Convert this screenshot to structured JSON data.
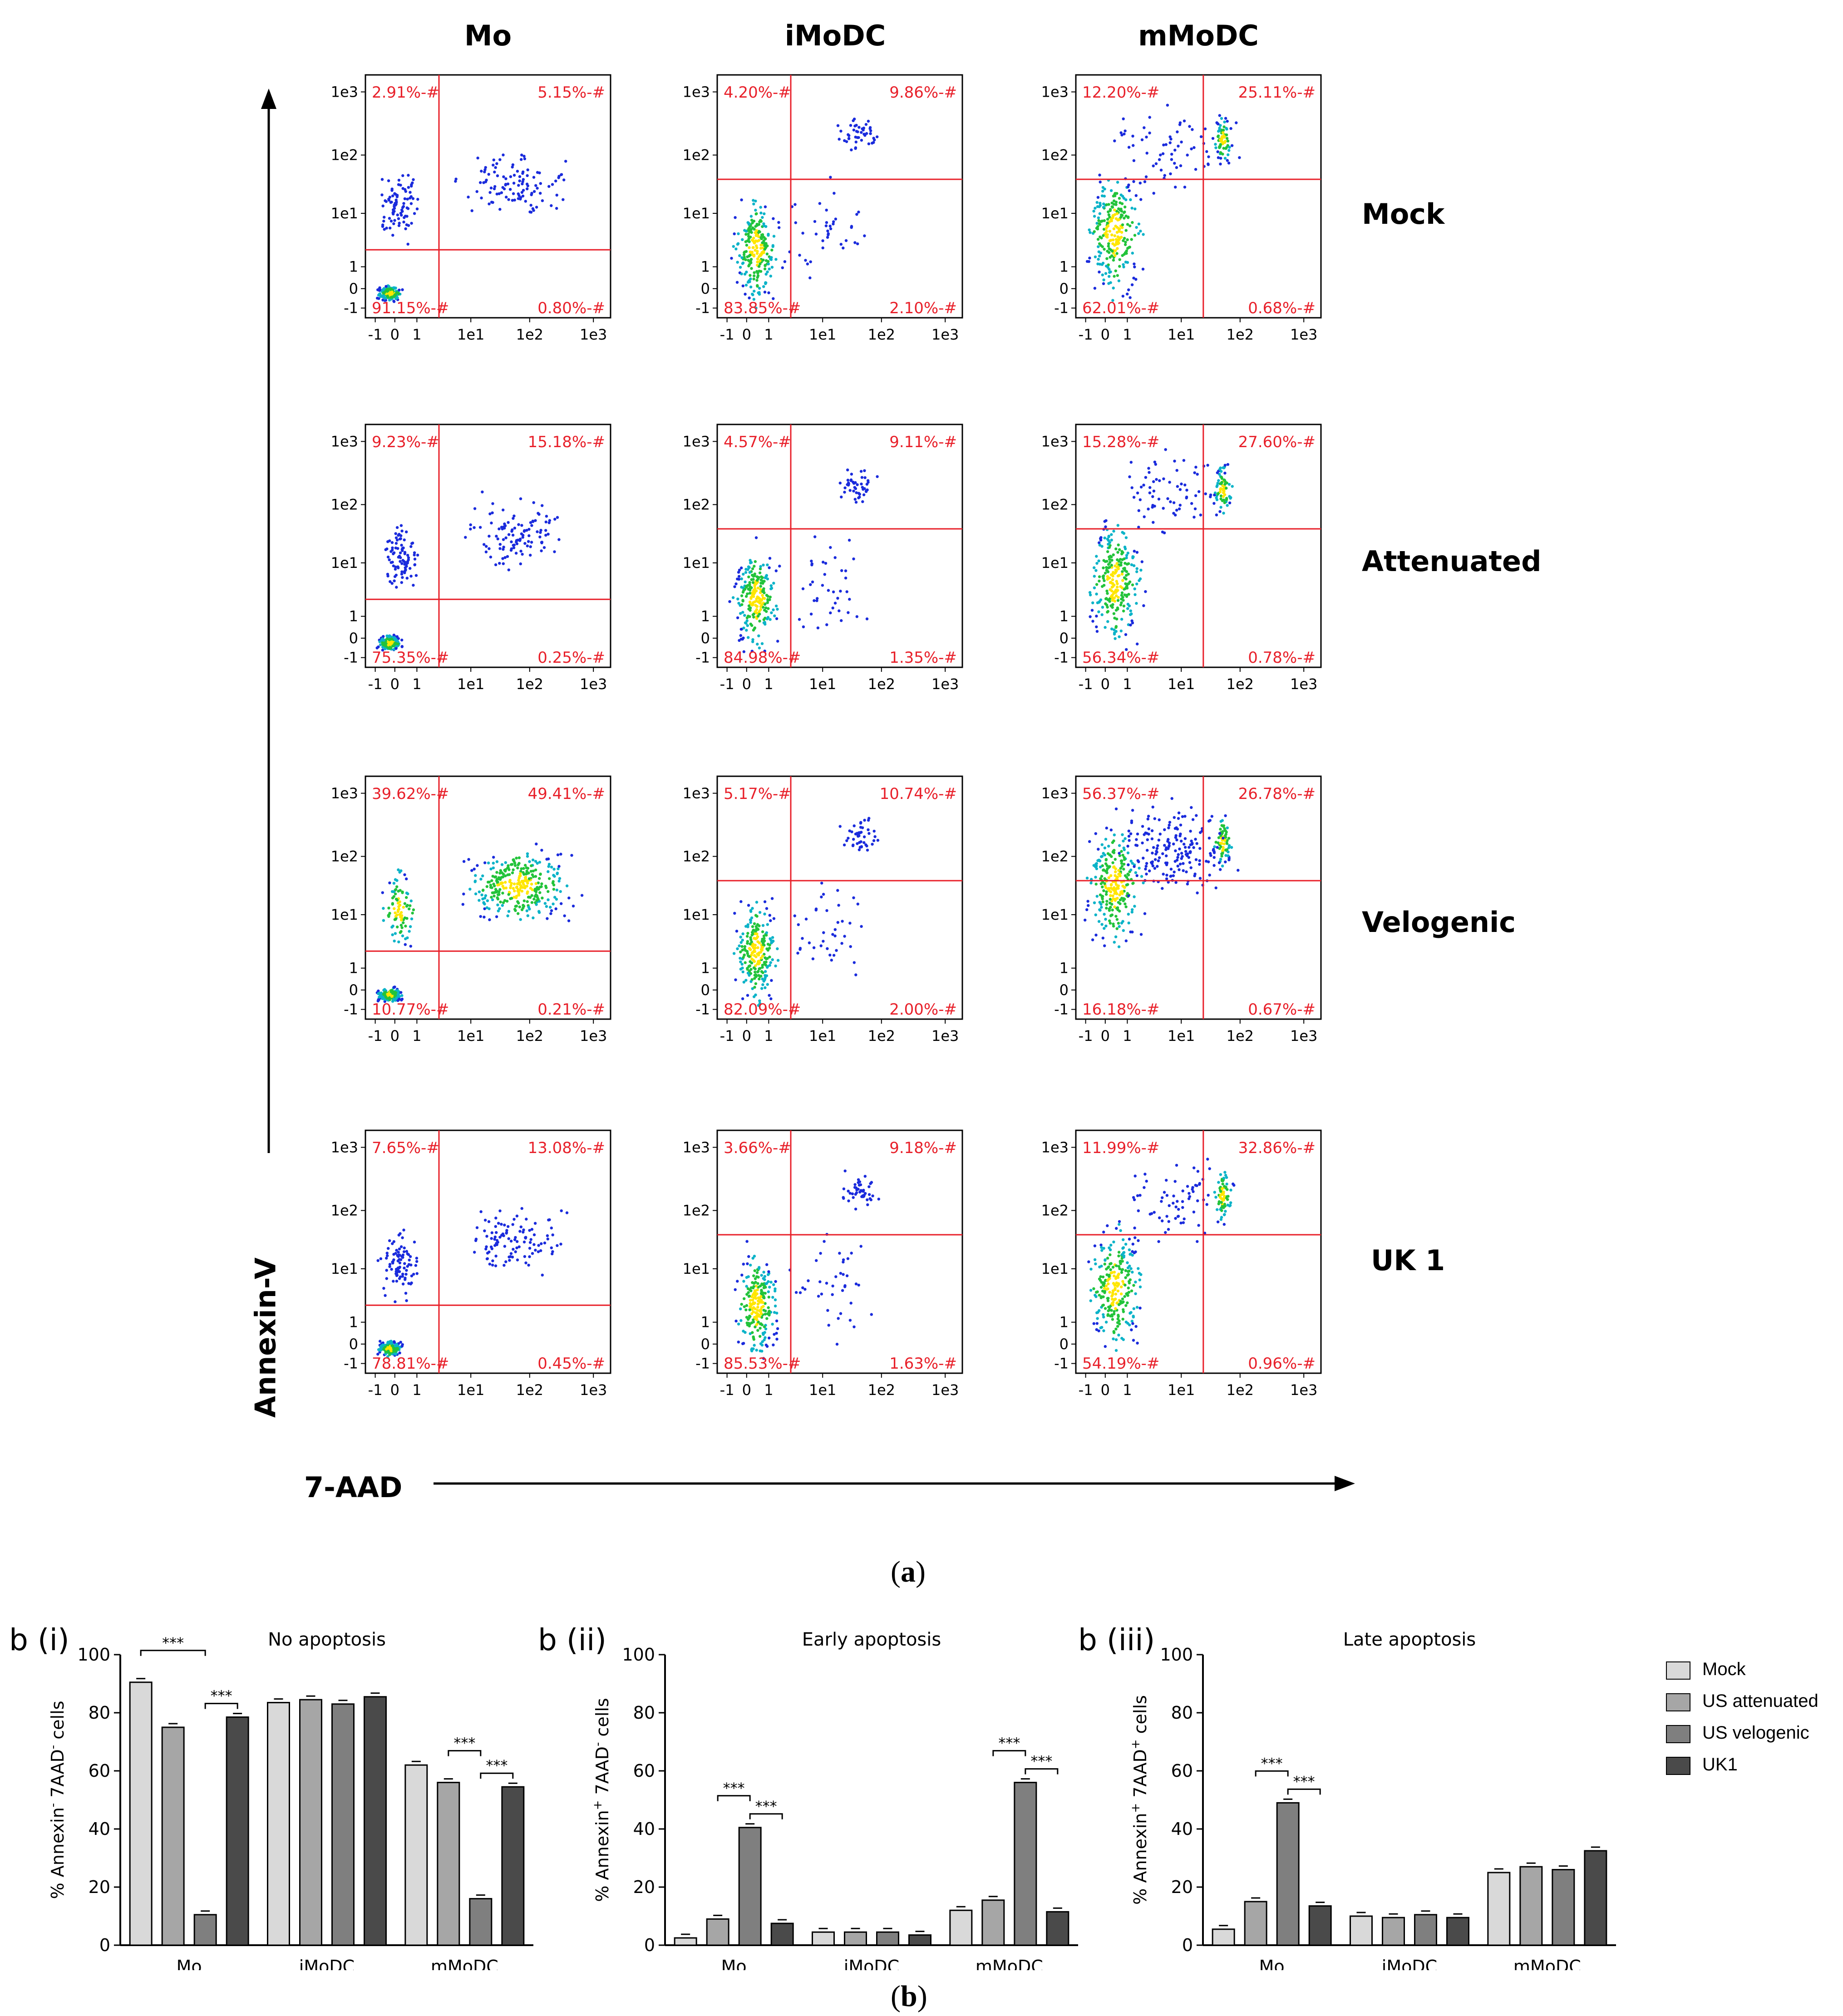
{
  "panel_a": {
    "caption_open": "(",
    "caption_letter": "a",
    "caption_close": ")",
    "column_headers": [
      "Mo",
      "iMoDC",
      "mMoDC"
    ],
    "row_labels": [
      "Mock",
      "Attenuated",
      "Velogenic",
      "UK 1"
    ],
    "y_axis_label": "Annexin-V",
    "x_axis_label": "7-AAD",
    "tick_labels": [
      "-1",
      "0",
      "1",
      "1e1",
      "1e2",
      "1e3"
    ],
    "quadrant_color": "#e8202a",
    "gates": [
      [
        {
          "ul": "2.91%-#",
          "ur": "5.15%-#",
          "ll": "91.15%-#",
          "lr": "0.80%-#"
        },
        {
          "ul": "4.20%-#",
          "ur": "9.86%-#",
          "ll": "83.85%-#",
          "lr": "2.10%-#"
        },
        {
          "ul": "12.20%-#",
          "ur": "25.11%-#",
          "ll": "62.01%-#",
          "lr": "0.68%-#"
        }
      ],
      [
        {
          "ul": "9.23%-#",
          "ur": "15.18%-#",
          "ll": "75.35%-#",
          "lr": "0.25%-#"
        },
        {
          "ul": "4.57%-#",
          "ur": "9.11%-#",
          "ll": "84.98%-#",
          "lr": "1.35%-#"
        },
        {
          "ul": "15.28%-#",
          "ur": "27.60%-#",
          "ll": "56.34%-#",
          "lr": "0.78%-#"
        }
      ],
      [
        {
          "ul": "39.62%-#",
          "ur": "49.41%-#",
          "ll": "10.77%-#",
          "lr": "0.21%-#"
        },
        {
          "ul": "5.17%-#",
          "ur": "10.74%-#",
          "ll": "82.09%-#",
          "lr": "2.00%-#"
        },
        {
          "ul": "56.37%-#",
          "ur": "26.78%-#",
          "ll": "16.18%-#",
          "lr": "0.67%-#"
        }
      ],
      [
        {
          "ul": "7.65%-#",
          "ur": "13.08%-#",
          "ll": "78.81%-#",
          "lr": "0.45%-#"
        },
        {
          "ul": "3.66%-#",
          "ur": "9.18%-#",
          "ll": "85.53%-#",
          "lr": "1.63%-#"
        },
        {
          "ul": "11.99%-#",
          "ur": "32.86%-#",
          "ll": "54.19%-#",
          "lr": "0.96%-#"
        }
      ]
    ]
  },
  "panel_b": {
    "caption_open": "(",
    "caption_letter": "b",
    "caption_close": ")",
    "legend": [
      {
        "name": "Mock",
        "color": "#d9d9d9"
      },
      {
        "name": "US attenuated",
        "color": "#a6a6a6"
      },
      {
        "name": "US velogenic",
        "color": "#7f7f7f"
      },
      {
        "name": "UK1",
        "color": "#4a4a4a"
      }
    ]
  },
  "chart_data": [
    {
      "type": "scatter",
      "description_note": "",
      "subplots": [
        {
          "row": "Mock",
          "column": "Mo",
          "quadrants_percent": {
            "upper_left": 2.91,
            "upper_right": 5.15,
            "lower_left": 91.15,
            "lower_right": 0.8
          }
        },
        {
          "row": "Mock",
          "column": "iMoDC",
          "quadrants_percent": {
            "upper_left": 4.2,
            "upper_right": 9.86,
            "lower_left": 83.85,
            "lower_right": 2.1
          }
        },
        {
          "row": "Mock",
          "column": "mMoDC",
          "quadrants_percent": {
            "upper_left": 12.2,
            "upper_right": 25.11,
            "lower_left": 62.01,
            "lower_right": 0.68
          }
        },
        {
          "row": "Attenuated",
          "column": "Mo",
          "quadrants_percent": {
            "upper_left": 9.23,
            "upper_right": 15.18,
            "lower_left": 75.35,
            "lower_right": 0.25
          }
        },
        {
          "row": "Attenuated",
          "column": "iMoDC",
          "quadrants_percent": {
            "upper_left": 4.57,
            "upper_right": 9.11,
            "lower_left": 84.98,
            "lower_right": 1.35
          }
        },
        {
          "row": "Attenuated",
          "column": "mMoDC",
          "quadrants_percent": {
            "upper_left": 15.28,
            "upper_right": 27.6,
            "lower_left": 56.34,
            "lower_right": 0.78
          }
        },
        {
          "row": "Velogenic",
          "column": "Mo",
          "quadrants_percent": {
            "upper_left": 39.62,
            "upper_right": 49.41,
            "lower_left": 10.77,
            "lower_right": 0.21
          }
        },
        {
          "row": "Velogenic",
          "column": "iMoDC",
          "quadrants_percent": {
            "upper_left": 5.17,
            "upper_right": 10.74,
            "lower_left": 82.09,
            "lower_right": 2.0
          }
        },
        {
          "row": "Velogenic",
          "column": "mMoDC",
          "quadrants_percent": {
            "upper_left": 56.37,
            "upper_right": 26.78,
            "lower_left": 16.18,
            "lower_right": 0.67
          }
        },
        {
          "row": "UK 1",
          "column": "Mo",
          "quadrants_percent": {
            "upper_left": 7.65,
            "upper_right": 13.08,
            "lower_left": 78.81,
            "lower_right": 0.45
          }
        },
        {
          "row": "UK 1",
          "column": "iMoDC",
          "quadrants_percent": {
            "upper_left": 3.66,
            "upper_right": 9.18,
            "lower_left": 85.53,
            "lower_right": 1.63
          }
        },
        {
          "row": "UK 1",
          "column": "mMoDC",
          "quadrants_percent": {
            "upper_left": 11.99,
            "upper_right": 32.86,
            "lower_left": 54.19,
            "lower_right": 0.96
          }
        }
      ],
      "xlabel": "7-AAD",
      "ylabel": "Annexin-V",
      "xscale": "log",
      "yscale": "log"
    },
    {
      "type": "bar",
      "panel_label": "b (i)",
      "title": "No apoptosis",
      "ylabel_parts": [
        "% Annexin",
        "-",
        " 7AAD",
        "-",
        " cells"
      ],
      "categories": [
        "Mo",
        "iMoDC",
        "mMoDC"
      ],
      "ylim": [
        0,
        100
      ],
      "yticks": [
        0,
        20,
        40,
        60,
        80,
        100
      ],
      "series": [
        {
          "name": "Mock",
          "values": [
            90.5,
            83.5,
            62.0
          ]
        },
        {
          "name": "US attenuated",
          "values": [
            75.0,
            84.5,
            56.0
          ]
        },
        {
          "name": "US velogenic",
          "values": [
            10.5,
            83.0,
            16.0
          ]
        },
        {
          "name": "UK1",
          "values": [
            78.5,
            85.5,
            54.5
          ]
        }
      ],
      "significance": [
        {
          "category": "Mo",
          "from": 0,
          "to": 2,
          "label": "***"
        },
        {
          "category": "Mo",
          "from": 2,
          "to": 3,
          "label": "***"
        },
        {
          "category": "mMoDC",
          "from": 1,
          "to": 2,
          "label": "***"
        },
        {
          "category": "mMoDC",
          "from": 2,
          "to": 3,
          "label": "***"
        }
      ]
    },
    {
      "type": "bar",
      "panel_label": "b (ii)",
      "title": "Early apoptosis",
      "ylabel_parts": [
        "% Annexin",
        "+",
        " 7AAD",
        "-",
        " cells"
      ],
      "categories": [
        "Mo",
        "iMoDC",
        "mMoDC"
      ],
      "ylim": [
        0,
        100
      ],
      "yticks": [
        0,
        20,
        40,
        60,
        80,
        100
      ],
      "series": [
        {
          "name": "Mock",
          "values": [
            2.5,
            4.5,
            12.0
          ]
        },
        {
          "name": "US attenuated",
          "values": [
            9.0,
            4.5,
            15.5
          ]
        },
        {
          "name": "US velogenic",
          "values": [
            40.5,
            4.5,
            56.0
          ]
        },
        {
          "name": "UK1",
          "values": [
            7.5,
            3.5,
            11.5
          ]
        }
      ],
      "significance": [
        {
          "category": "Mo",
          "from": 1,
          "to": 2,
          "label": "***"
        },
        {
          "category": "Mo",
          "from": 2,
          "to": 3,
          "label": "***"
        },
        {
          "category": "mMoDC",
          "from": 1,
          "to": 2,
          "label": "***"
        },
        {
          "category": "mMoDC",
          "from": 2,
          "to": 3,
          "label": "***"
        }
      ]
    },
    {
      "type": "bar",
      "panel_label": "b (iii)",
      "title": "Late apoptosis",
      "ylabel_parts": [
        "% Annexin",
        "+",
        " 7AAD",
        "+",
        " cells"
      ],
      "categories": [
        "Mo",
        "iMoDC",
        "mMoDC"
      ],
      "ylim": [
        0,
        100
      ],
      "yticks": [
        0,
        20,
        40,
        60,
        80,
        100
      ],
      "series": [
        {
          "name": "Mock",
          "values": [
            5.5,
            10.0,
            25.0
          ]
        },
        {
          "name": "US attenuated",
          "values": [
            15.0,
            9.5,
            27.0
          ]
        },
        {
          "name": "US velogenic",
          "values": [
            49.0,
            10.5,
            26.0
          ]
        },
        {
          "name": "UK1",
          "values": [
            13.5,
            9.5,
            32.5
          ]
        }
      ],
      "significance": [
        {
          "category": "Mo",
          "from": 1,
          "to": 2,
          "label": "***"
        },
        {
          "category": "Mo",
          "from": 2,
          "to": 3,
          "label": "***"
        }
      ]
    }
  ]
}
